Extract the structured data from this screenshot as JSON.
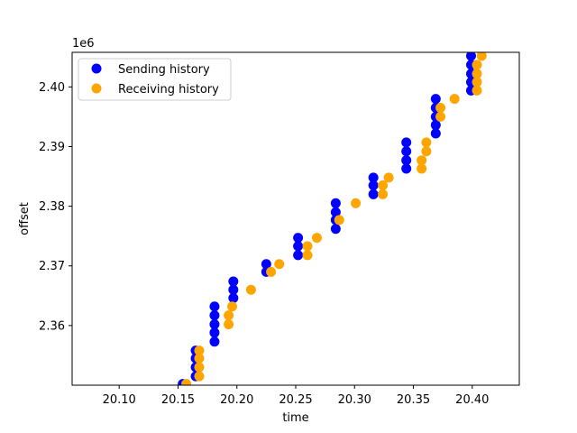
{
  "chart_data": {
    "type": "scatter",
    "title": "",
    "xlabel": "time",
    "ylabel": "offset",
    "y_offset_label": "1e6",
    "xlim": [
      20.06,
      20.44
    ],
    "ylim": [
      2.35,
      2.4058
    ],
    "x_ticks": [
      20.1,
      20.15,
      20.2,
      20.25,
      20.3,
      20.35,
      20.4
    ],
    "x_tick_labels": [
      "20.10",
      "20.15",
      "20.20",
      "20.25",
      "20.30",
      "20.35",
      "20.40"
    ],
    "y_ticks": [
      2.36,
      2.37,
      2.38,
      2.39,
      2.4
    ],
    "y_tick_labels": [
      "2.36",
      "2.37",
      "2.38",
      "2.39",
      "2.40"
    ],
    "grid": false,
    "legend_position": "upper-left",
    "series": [
      {
        "name": "Sending history",
        "color": "#0000ff",
        "points": [
          [
            20.154,
            2.3502
          ],
          [
            20.165,
            2.3515
          ],
          [
            20.165,
            2.353
          ],
          [
            20.165,
            2.3545
          ],
          [
            20.165,
            2.3558
          ],
          [
            20.181,
            2.3573
          ],
          [
            20.181,
            2.3588
          ],
          [
            20.181,
            2.3602
          ],
          [
            20.181,
            2.3617
          ],
          [
            20.181,
            2.3632
          ],
          [
            20.197,
            2.3646
          ],
          [
            20.197,
            2.366
          ],
          [
            20.197,
            2.3674
          ],
          [
            20.225,
            2.369
          ],
          [
            20.225,
            2.3703
          ],
          [
            20.252,
            2.3718
          ],
          [
            20.252,
            2.3733
          ],
          [
            20.252,
            2.3747
          ],
          [
            20.284,
            2.3762
          ],
          [
            20.284,
            2.3777
          ],
          [
            20.284,
            2.379
          ],
          [
            20.284,
            2.3805
          ],
          [
            20.316,
            2.382
          ],
          [
            20.316,
            2.3835
          ],
          [
            20.316,
            2.3848
          ],
          [
            20.344,
            2.3863
          ],
          [
            20.344,
            2.3877
          ],
          [
            20.344,
            2.3892
          ],
          [
            20.344,
            2.3907
          ],
          [
            20.369,
            2.3922
          ],
          [
            20.369,
            2.3936
          ],
          [
            20.369,
            2.395
          ],
          [
            20.369,
            2.3965
          ],
          [
            20.369,
            2.398
          ],
          [
            20.399,
            2.3994
          ],
          [
            20.399,
            2.4008
          ],
          [
            20.399,
            2.4022
          ],
          [
            20.399,
            2.4037
          ],
          [
            20.399,
            2.4052
          ]
        ]
      },
      {
        "name": "Receiving history",
        "color": "#ffa500",
        "points": [
          [
            20.157,
            2.3502
          ],
          [
            20.168,
            2.3515
          ],
          [
            20.168,
            2.353
          ],
          [
            20.168,
            2.3545
          ],
          [
            20.168,
            2.3558
          ],
          [
            20.193,
            2.3602
          ],
          [
            20.193,
            2.3617
          ],
          [
            20.196,
            2.3632
          ],
          [
            20.212,
            2.366
          ],
          [
            20.229,
            2.369
          ],
          [
            20.236,
            2.3703
          ],
          [
            20.26,
            2.3718
          ],
          [
            20.26,
            2.3733
          ],
          [
            20.268,
            2.3747
          ],
          [
            20.287,
            2.3777
          ],
          [
            20.301,
            2.3805
          ],
          [
            20.324,
            2.382
          ],
          [
            20.324,
            2.3835
          ],
          [
            20.329,
            2.3848
          ],
          [
            20.357,
            2.3863
          ],
          [
            20.357,
            2.3877
          ],
          [
            20.361,
            2.3892
          ],
          [
            20.361,
            2.3907
          ],
          [
            20.373,
            2.395
          ],
          [
            20.373,
            2.3965
          ],
          [
            20.385,
            2.398
          ],
          [
            20.404,
            2.3994
          ],
          [
            20.404,
            2.4008
          ],
          [
            20.404,
            2.4022
          ],
          [
            20.404,
            2.4037
          ],
          [
            20.408,
            2.4052
          ]
        ]
      }
    ]
  }
}
